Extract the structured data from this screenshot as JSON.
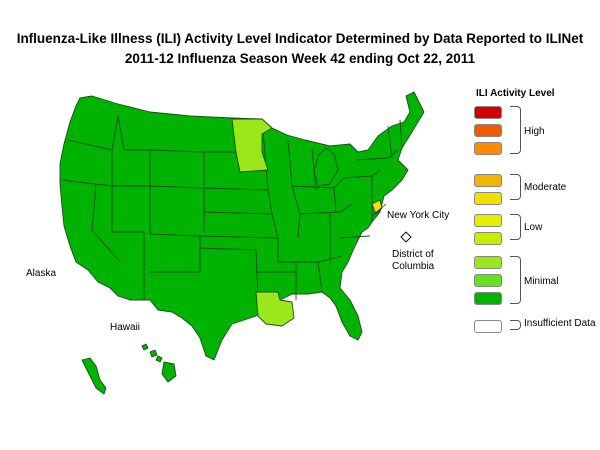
{
  "title": {
    "line1": "Influenza-Like Illness (ILI) Activity Level Indicator Determined by Data Reported to ILINet",
    "line2": "2011-12  Influenza Season Week  42 ending Oct 22, 2011"
  },
  "labels": {
    "alaska": "Alaska",
    "hawaii": "Hawaii",
    "nyc": "New York City",
    "dc_line1": "District of",
    "dc_line2": "Columbia"
  },
  "legend": {
    "title": "ILI Activity Level",
    "swatches": [
      {
        "level": 10,
        "color": "#d40000"
      },
      {
        "level": 9,
        "color": "#f25a00"
      },
      {
        "level": 8,
        "color": "#ff8c00"
      },
      {
        "level": 7,
        "color": "#f5b400"
      },
      {
        "level": 6,
        "color": "#f2e000"
      },
      {
        "level": 5,
        "color": "#e6ee00"
      },
      {
        "level": 4,
        "color": "#c7ee00"
      },
      {
        "level": 3,
        "color": "#9be81a"
      },
      {
        "level": 2,
        "color": "#66e022"
      },
      {
        "level": 1,
        "color": "#00b300"
      },
      {
        "level": 0,
        "color": "#ffffff"
      }
    ],
    "groups": {
      "high": "High",
      "moderate": "Moderate",
      "low": "Low",
      "minimal": "Minimal",
      "insufficient": "Insufficient Data"
    }
  },
  "state_levels": {
    "default": "#00b300",
    "minnesota": "#9be81a",
    "louisiana": "#9be81a",
    "nyc": "#f2e000",
    "dc": "#ffffff"
  }
}
